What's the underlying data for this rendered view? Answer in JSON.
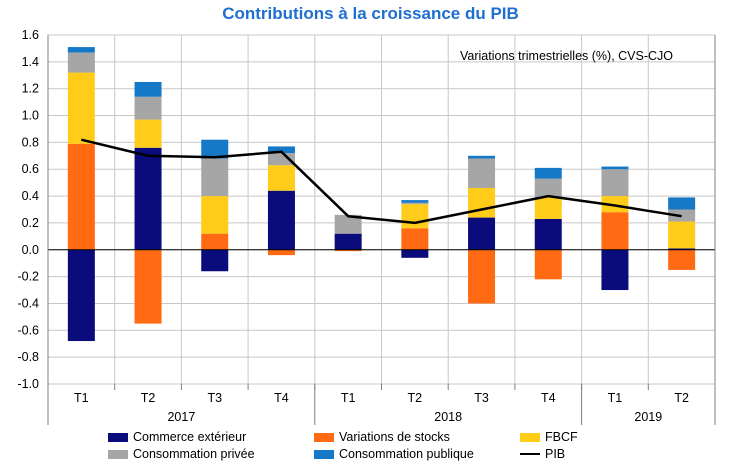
{
  "colors": {
    "title": "#1f6fd1",
    "commerce": "#0b0c7c",
    "stocks": "#ff6a13",
    "fbcf": "#ffcc1a",
    "privee": "#a6a6a6",
    "publique": "#1679c8",
    "pib": "#000000"
  },
  "chart_data": {
    "type": "bar",
    "stacked": true,
    "title": "Contributions à la croissance du PIB",
    "annotation": "Variations trimestrielles (%), CVS-CJO",
    "ylim": [
      -1.0,
      1.6
    ],
    "yticks": [
      "1.6",
      "1.4",
      "1.2",
      "1.0",
      "0.8",
      "0.6",
      "0.4",
      "0.2",
      "0.0",
      "-0.2",
      "-0.4",
      "-0.6",
      "-0.8",
      "-1.0"
    ],
    "grid": true,
    "categories": [
      "T1",
      "T2",
      "T3",
      "T4",
      "T1",
      "T2",
      "T3",
      "T4",
      "T1",
      "T2"
    ],
    "years": [
      {
        "label": "2017",
        "count": 4
      },
      {
        "label": "2018",
        "count": 4
      },
      {
        "label": "2019",
        "count": 2
      }
    ],
    "series": [
      {
        "key": "commerce",
        "name": "Commerce extérieur",
        "values": [
          -0.68,
          0.76,
          -0.16,
          0.44,
          0.12,
          -0.06,
          0.24,
          0.23,
          -0.3,
          0.01
        ]
      },
      {
        "key": "stocks",
        "name": "Variations de stocks",
        "values": [
          0.79,
          -0.55,
          0.12,
          -0.04,
          -0.01,
          0.16,
          -0.4,
          -0.22,
          0.28,
          -0.15
        ]
      },
      {
        "key": "fbcf",
        "name": "FBCF",
        "values": [
          0.53,
          0.21,
          0.28,
          0.19,
          0.0,
          0.18,
          0.22,
          0.16,
          0.12,
          0.2
        ]
      },
      {
        "key": "privee",
        "name": "Consommation privée",
        "values": [
          0.15,
          0.17,
          0.28,
          0.09,
          0.14,
          0.01,
          0.22,
          0.14,
          0.2,
          0.09
        ]
      },
      {
        "key": "publique",
        "name": "Consommation publique",
        "values": [
          0.04,
          0.11,
          0.14,
          0.05,
          0.0,
          0.02,
          0.02,
          0.08,
          0.02,
          0.09
        ]
      }
    ],
    "line": {
      "key": "pib",
      "name": "PIB",
      "values": [
        0.82,
        0.7,
        0.69,
        0.73,
        0.25,
        0.2,
        0.3,
        0.4,
        0.33,
        0.25
      ]
    }
  }
}
